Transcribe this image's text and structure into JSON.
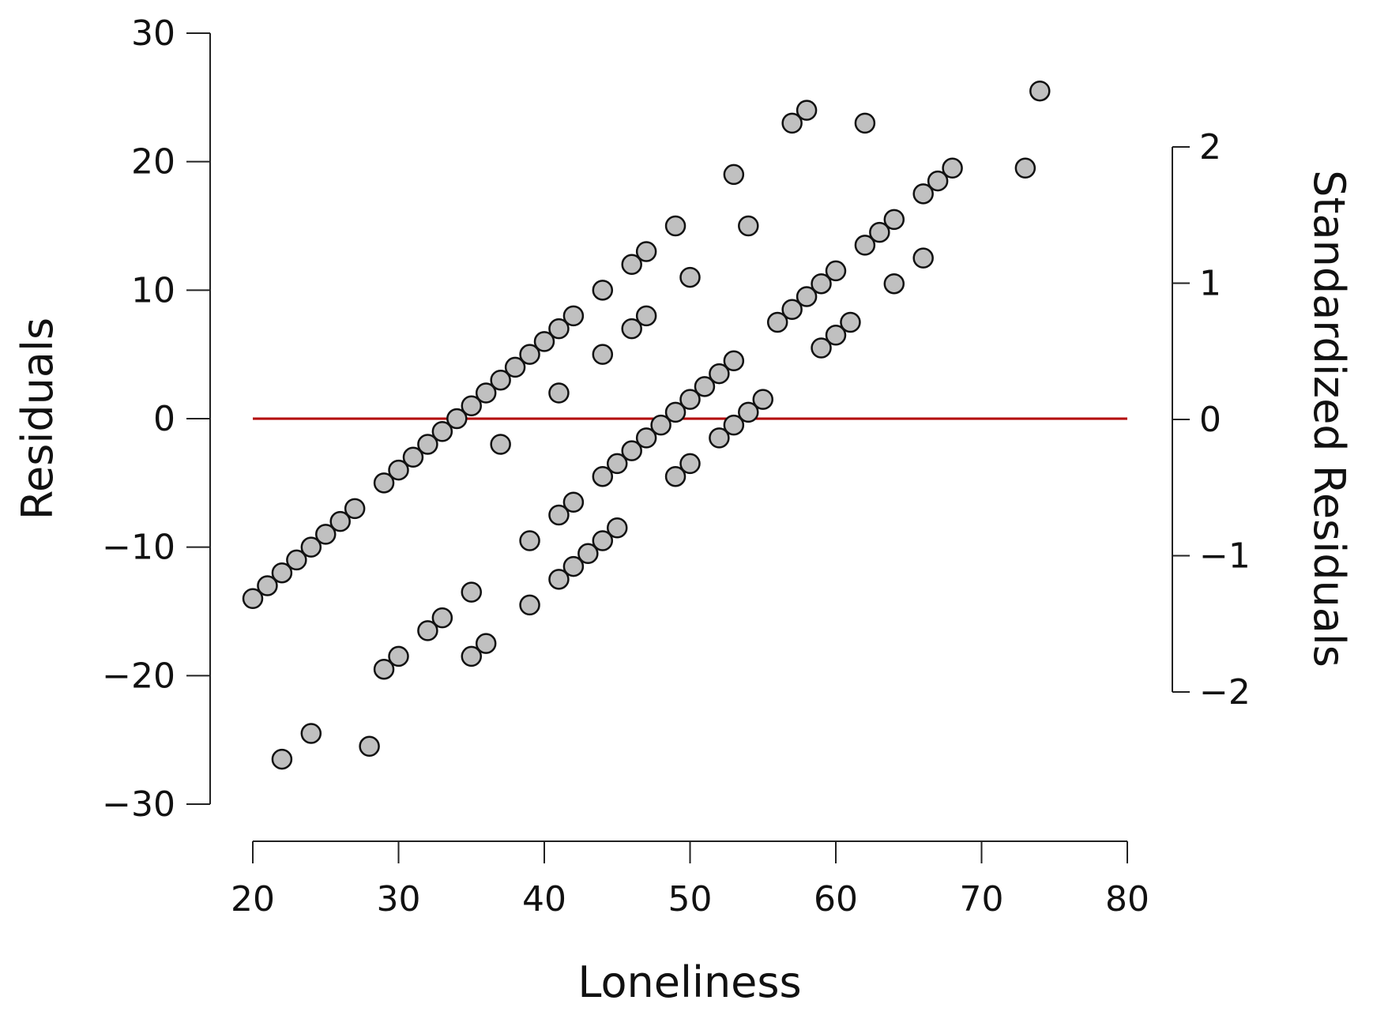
{
  "chart_data": {
    "type": "scatter",
    "xlabel": "Loneliness",
    "ylabel": "Residuals",
    "y2label": "Standardized Residuals",
    "xlim": [
      20,
      80
    ],
    "ylim": [
      -30,
      30
    ],
    "y2lim": [
      -2,
      2
    ],
    "x_ticks": [
      "20",
      "30",
      "40",
      "50",
      "60",
      "70",
      "80"
    ],
    "y_ticks": [
      "30",
      "20",
      "10",
      "0",
      "−10",
      "−20",
      "−30"
    ],
    "y2_ticks": [
      "2",
      "1",
      "0",
      "−1",
      "−2"
    ],
    "grid": false,
    "reference_line": {
      "y": 0,
      "x_range": [
        20,
        80
      ],
      "color": "#b30000"
    },
    "point_color": "#c0c0c0",
    "points": [
      [
        20,
        -14
      ],
      [
        21,
        -13
      ],
      [
        22,
        -12
      ],
      [
        23,
        -11
      ],
      [
        24,
        -10
      ],
      [
        25,
        -9
      ],
      [
        26,
        -8
      ],
      [
        27,
        -7
      ],
      [
        29,
        -5
      ],
      [
        30,
        -4
      ],
      [
        31,
        -3
      ],
      [
        32,
        -2
      ],
      [
        33,
        -1
      ],
      [
        34,
        0
      ],
      [
        35,
        1
      ],
      [
        36,
        2
      ],
      [
        37,
        3
      ],
      [
        38,
        4
      ],
      [
        39,
        5
      ],
      [
        40,
        6
      ],
      [
        41,
        7
      ],
      [
        42,
        8
      ],
      [
        44,
        10
      ],
      [
        46,
        12
      ],
      [
        47,
        13
      ],
      [
        49,
        15
      ],
      [
        53,
        19
      ],
      [
        57,
        23
      ],
      [
        58,
        24
      ],
      [
        62,
        23
      ],
      [
        74,
        25.5
      ],
      [
        37,
        -2
      ],
      [
        41,
        2
      ],
      [
        44,
        5
      ],
      [
        46,
        7
      ],
      [
        47,
        8
      ],
      [
        50,
        11
      ],
      [
        54,
        15
      ],
      [
        22,
        -26.5
      ],
      [
        24,
        -24.5
      ],
      [
        28,
        -25.5
      ],
      [
        29,
        -19.5
      ],
      [
        30,
        -18.5
      ],
      [
        32,
        -16.5
      ],
      [
        33,
        -15.5
      ],
      [
        35,
        -13.5
      ],
      [
        35,
        -18.5
      ],
      [
        36,
        -17.5
      ],
      [
        39,
        -9.5
      ],
      [
        39,
        -14.5
      ],
      [
        41,
        -7.5
      ],
      [
        42,
        -6.5
      ],
      [
        41,
        -12.5
      ],
      [
        42,
        -11.5
      ],
      [
        43,
        -10.5
      ],
      [
        44,
        -9.5
      ],
      [
        45,
        -8.5
      ],
      [
        44,
        -4.5
      ],
      [
        45,
        -3.5
      ],
      [
        46,
        -2.5
      ],
      [
        47,
        -1.5
      ],
      [
        48,
        -0.5
      ],
      [
        49,
        0.5
      ],
      [
        50,
        1.5
      ],
      [
        51,
        2.5
      ],
      [
        52,
        3.5
      ],
      [
        53,
        4.5
      ],
      [
        49,
        -4.5
      ],
      [
        50,
        -3.5
      ],
      [
        52,
        -1.5
      ],
      [
        53,
        -0.5
      ],
      [
        54,
        0.5
      ],
      [
        55,
        1.5
      ],
      [
        56,
        7.5
      ],
      [
        57,
        8.5
      ],
      [
        58,
        9.5
      ],
      [
        59,
        10.5
      ],
      [
        60,
        11.5
      ],
      [
        59,
        5.5
      ],
      [
        60,
        6.5
      ],
      [
        61,
        7.5
      ],
      [
        62,
        13.5
      ],
      [
        63,
        14.5
      ],
      [
        64,
        15.5
      ],
      [
        64,
        10.5
      ],
      [
        66,
        12.5
      ],
      [
        66,
        17.5
      ],
      [
        67,
        18.5
      ],
      [
        68,
        19.5
      ],
      [
        73,
        19.5
      ]
    ]
  }
}
